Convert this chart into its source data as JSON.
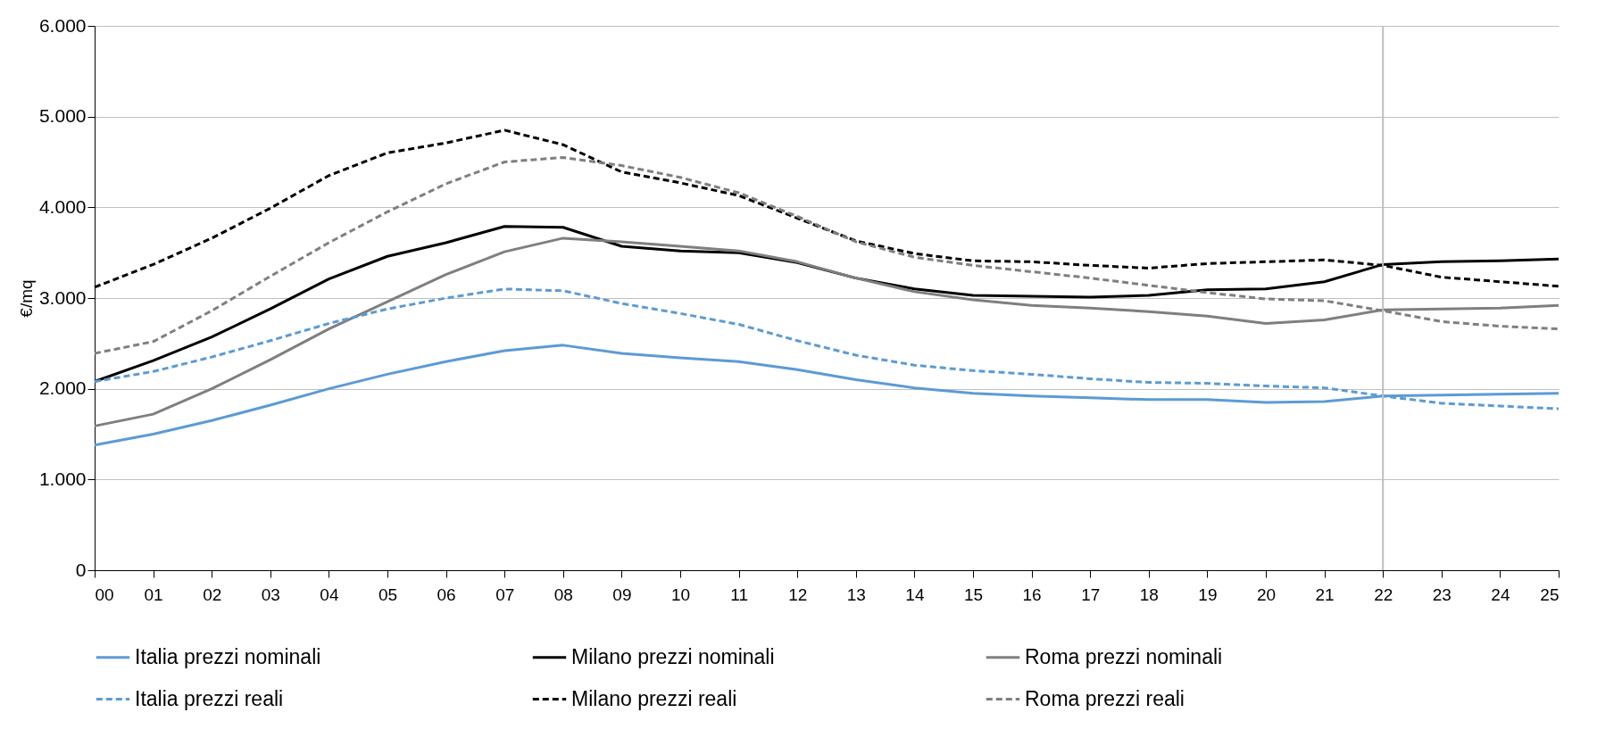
{
  "chart_data": {
    "type": "line",
    "ylabel": "€/mq",
    "categories": [
      "00",
      "01",
      "02",
      "03",
      "04",
      "05",
      "06",
      "07",
      "08",
      "09",
      "10",
      "11",
      "12",
      "13",
      "14",
      "15",
      "16",
      "17",
      "18",
      "19",
      "20",
      "21",
      "22",
      "23",
      "24",
      "25"
    ],
    "series": [
      {
        "name": "Italia prezzi nominali",
        "color": "#5b9bd5",
        "line_style": "solid",
        "values": [
          1380,
          1500,
          1650,
          1820,
          2000,
          2160,
          2300,
          2420,
          2480,
          2390,
          2340,
          2300,
          2210,
          2100,
          2010,
          1950,
          1920,
          1900,
          1880,
          1880,
          1850,
          1860,
          1920,
          1930,
          1940,
          1950
        ]
      },
      {
        "name": "Milano prezzi nominali",
        "color": "#000000",
        "line_style": "solid",
        "values": [
          2080,
          2310,
          2570,
          2880,
          3210,
          3460,
          3610,
          3790,
          3780,
          3570,
          3520,
          3500,
          3390,
          3220,
          3100,
          3030,
          3020,
          3010,
          3030,
          3090,
          3100,
          3180,
          3370,
          3400,
          3410,
          3430
        ]
      },
      {
        "name": "Roma prezzi nominali",
        "color": "#7f7f7f",
        "line_style": "solid",
        "values": [
          1590,
          1720,
          2000,
          2320,
          2660,
          2960,
          3260,
          3510,
          3660,
          3620,
          3570,
          3520,
          3400,
          3220,
          3070,
          2980,
          2920,
          2890,
          2850,
          2800,
          2720,
          2760,
          2870,
          2880,
          2890,
          2920
        ]
      },
      {
        "name": "Italia prezzi reali",
        "color": "#5b9bd5",
        "line_style": "dashed",
        "values": [
          2080,
          2190,
          2350,
          2530,
          2720,
          2880,
          3000,
          3100,
          3080,
          2940,
          2830,
          2710,
          2530,
          2370,
          2260,
          2200,
          2160,
          2110,
          2070,
          2060,
          2030,
          2010,
          1920,
          1840,
          1810,
          1780
        ]
      },
      {
        "name": "Milano prezzi reali",
        "color": "#000000",
        "line_style": "dashed",
        "values": [
          3120,
          3370,
          3660,
          3990,
          4350,
          4600,
          4710,
          4850,
          4690,
          4390,
          4270,
          4130,
          3880,
          3630,
          3490,
          3410,
          3400,
          3360,
          3330,
          3380,
          3400,
          3420,
          3360,
          3230,
          3180,
          3130
        ]
      },
      {
        "name": "Roma prezzi reali",
        "color": "#7f7f7f",
        "line_style": "dashed",
        "values": [
          2390,
          2520,
          2860,
          3240,
          3610,
          3950,
          4260,
          4500,
          4550,
          4460,
          4330,
          4160,
          3900,
          3620,
          3450,
          3360,
          3290,
          3220,
          3140,
          3060,
          2990,
          2970,
          2860,
          2740,
          2690,
          2660
        ]
      }
    ],
    "ylim": [
      0,
      6000
    ],
    "yticks": [
      0,
      {
        "value": 1000,
        "label": "1.000"
      },
      {
        "value": 2000,
        "label": "2.000"
      },
      {
        "value": 3000,
        "label": "3.000"
      },
      {
        "value": 4000,
        "label": "4.000"
      },
      {
        "value": 5000,
        "label": "5.000"
      },
      {
        "value": 6000,
        "label": "6.000"
      }
    ],
    "ref_lines": [
      {
        "axis": "x",
        "value": "22",
        "color": "#bfbfbf"
      }
    ],
    "grid": "y",
    "legend": "bottom"
  }
}
